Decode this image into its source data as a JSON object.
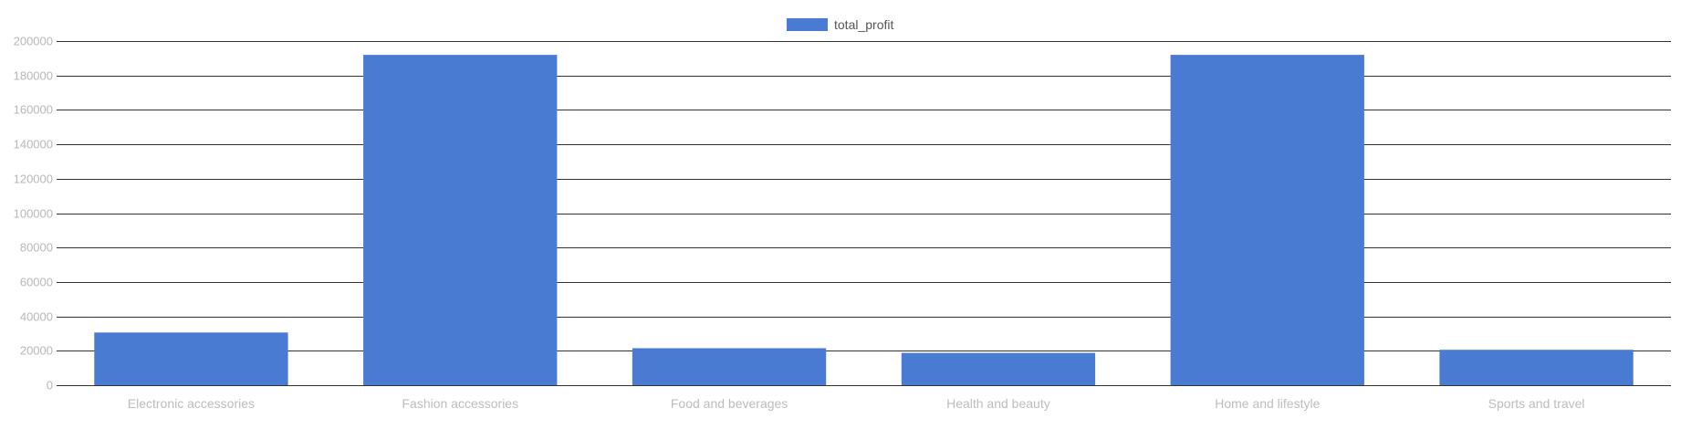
{
  "legend": {
    "label": "total_profit",
    "position": "top-center"
  },
  "colors": {
    "series": "#4a7bd2",
    "grid": "#333333",
    "tick_text": "#bdbdbd",
    "legend_text": "#555555"
  },
  "chart_data": {
    "type": "bar",
    "title": "",
    "xlabel": "",
    "ylabel": "",
    "categories": [
      "Electronic accessories",
      "Fashion accessories",
      "Food and beverages",
      "Health and beauty",
      "Home and lifestyle",
      "Sports and travel"
    ],
    "series": [
      {
        "name": "total_profit",
        "values": [
          30600,
          192000,
          21500,
          18800,
          192000,
          20600
        ]
      }
    ],
    "ylim": [
      0,
      200000
    ],
    "yticks": [
      0,
      20000,
      40000,
      60000,
      80000,
      100000,
      120000,
      140000,
      160000,
      180000,
      200000
    ],
    "grid": true,
    "legend": "top-center"
  }
}
